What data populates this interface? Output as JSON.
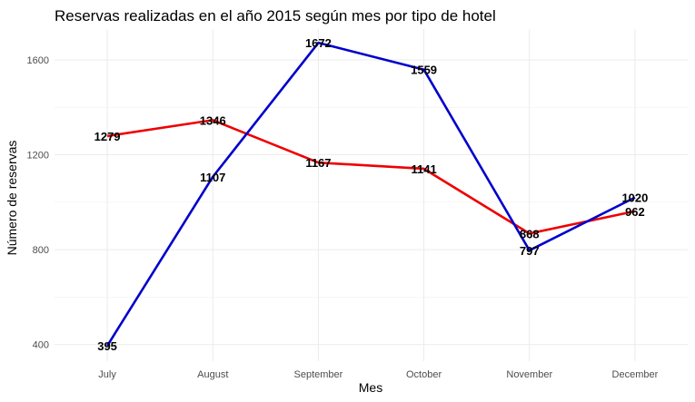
{
  "chart_data": {
    "type": "line",
    "title": "Reservas realizadas en el año 2015 según mes por tipo de hotel",
    "xlabel": "Mes",
    "ylabel": "Número de reservas",
    "categories": [
      "July",
      "August",
      "September",
      "October",
      "November",
      "December"
    ],
    "yticks": [
      400,
      800,
      1200,
      1600
    ],
    "ylim": [
      330,
      1730
    ],
    "grid": true,
    "legend": "none",
    "series": [
      {
        "color": "#ee0000",
        "values": [
          1279,
          1346,
          1167,
          1141,
          868,
          962
        ]
      },
      {
        "color": "#0000cc",
        "values": [
          395,
          1107,
          1672,
          1559,
          797,
          1020
        ]
      }
    ],
    "label_offsets_red": [
      0,
      0,
      0,
      0,
      0,
      0
    ],
    "label_offsets_blue": [
      0,
      0,
      0,
      0,
      0,
      0
    ]
  }
}
